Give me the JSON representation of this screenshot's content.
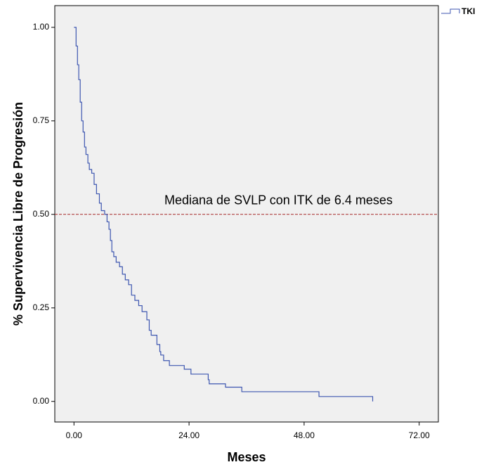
{
  "chart_data": {
    "type": "step",
    "x_label": "Meses",
    "y_label": "% Supervivencia Libre de Progresión",
    "x": [
      0,
      0.44,
      0.73,
      1.0,
      1.3,
      1.6,
      1.9,
      2.2,
      2.5,
      2.9,
      3.2,
      3.7,
      4.2,
      4.7,
      5.3,
      5.7,
      6.4,
      6.9,
      7.3,
      7.6,
      7.9,
      8.3,
      8.8,
      9.5,
      10.1,
      10.7,
      11.4,
      12.0,
      12.7,
      13.5,
      14.2,
      15.2,
      15.7,
      16.1,
      17.3,
      17.9,
      18.1,
      18.7,
      19.9,
      23.0,
      24.4,
      28.0,
      28.2,
      31.6,
      35.0,
      51.1,
      62.3
    ],
    "series": [
      {
        "name": "TKI",
        "color": "#3d56b0",
        "values": [
          1.0,
          0.95,
          0.9,
          0.86,
          0.8,
          0.75,
          0.72,
          0.68,
          0.66,
          0.637,
          0.62,
          0.61,
          0.58,
          0.555,
          0.53,
          0.51,
          0.5,
          0.48,
          0.46,
          0.43,
          0.4,
          0.387,
          0.372,
          0.36,
          0.34,
          0.325,
          0.312,
          0.284,
          0.27,
          0.256,
          0.24,
          0.218,
          0.19,
          0.177,
          0.152,
          0.133,
          0.124,
          0.109,
          0.096,
          0.086,
          0.073,
          0.058,
          0.047,
          0.038,
          0.026,
          0.013,
          0.0
        ]
      }
    ],
    "reference_line": {
      "value": 0.5,
      "color": "#a52a2a",
      "label": "Mediana de SVLP con ITK de 6.4 meses"
    },
    "xlim": [
      -4,
      76
    ],
    "ylim": [
      -0.055,
      1.058
    ],
    "xticks": [
      {
        "value": 0,
        "label": "0.00"
      },
      {
        "value": 24,
        "label": "24.00"
      },
      {
        "value": 48,
        "label": "48.00"
      },
      {
        "value": 72,
        "label": "72.00"
      }
    ],
    "yticks": [
      {
        "value": 0,
        "label": "0.00"
      },
      {
        "value": 0.25,
        "label": "0.25"
      },
      {
        "value": 0.5,
        "label": "0.50"
      },
      {
        "value": 0.75,
        "label": "0.75"
      },
      {
        "value": 1,
        "label": "1.00"
      }
    ]
  }
}
